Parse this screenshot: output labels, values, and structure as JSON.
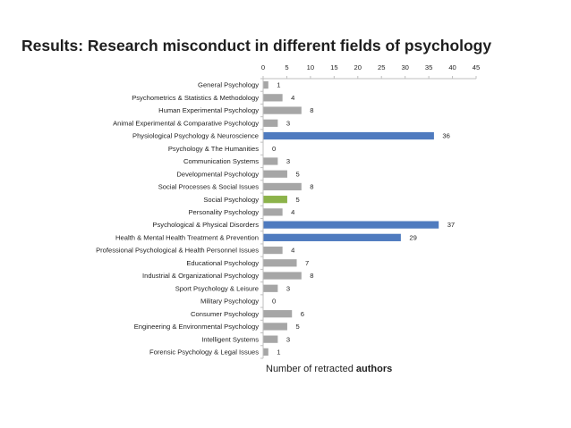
{
  "chart_data": {
    "type": "bar",
    "orientation": "horizontal",
    "title": "Results: Research misconduct in different fields of psychology",
    "xlabel_prefix": "Number of retracted ",
    "xlabel_bold": "authors",
    "xlim": [
      0,
      45
    ],
    "xticks": [
      0,
      5,
      10,
      15,
      20,
      25,
      30,
      35,
      40,
      45
    ],
    "xaxis_position": "top",
    "grid": false,
    "legend": "none",
    "categories": [
      "General Psychology",
      "Psychometrics & Statistics & Methodology",
      "Human Experimental Psychology",
      "Animal Experimental & Comparative Psychology",
      "Physiological Psychology & Neuroscience",
      "Psychology & The Humanities",
      "Communication Systems",
      "Developmental Psychology",
      "Social Processes & Social Issues",
      "Social Psychology",
      "Personality Psychology",
      "Psychological & Physical Disorders",
      "Health & Mental Health Treatment & Prevention",
      "Professional Psychological & Health Personnel Issues",
      "Educational Psychology",
      "Industrial & Organizational Psychology",
      "Sport Psychology & Leisure",
      "Military Psychology",
      "Consumer Psychology",
      "Engineering & Environmental Psychology",
      "Intelligent Systems",
      "Forensic Psychology & Legal Issues"
    ],
    "values": [
      1,
      4,
      8,
      3,
      36,
      0,
      3,
      5,
      8,
      5,
      4,
      37,
      29,
      4,
      7,
      8,
      3,
      0,
      6,
      5,
      3,
      1
    ],
    "bar_colors": [
      "#a6a6a6",
      "#a6a6a6",
      "#a6a6a6",
      "#a6a6a6",
      "#4f7bbf",
      "#a6a6a6",
      "#a6a6a6",
      "#a6a6a6",
      "#a6a6a6",
      "#8cb34a",
      "#a6a6a6",
      "#4f7bbf",
      "#4f7bbf",
      "#a6a6a6",
      "#a6a6a6",
      "#a6a6a6",
      "#a6a6a6",
      "#a6a6a6",
      "#a6a6a6",
      "#a6a6a6",
      "#a6a6a6",
      "#a6a6a6"
    ],
    "axis_color": "#bfbfbf",
    "text_color": "#1f1f1f"
  }
}
